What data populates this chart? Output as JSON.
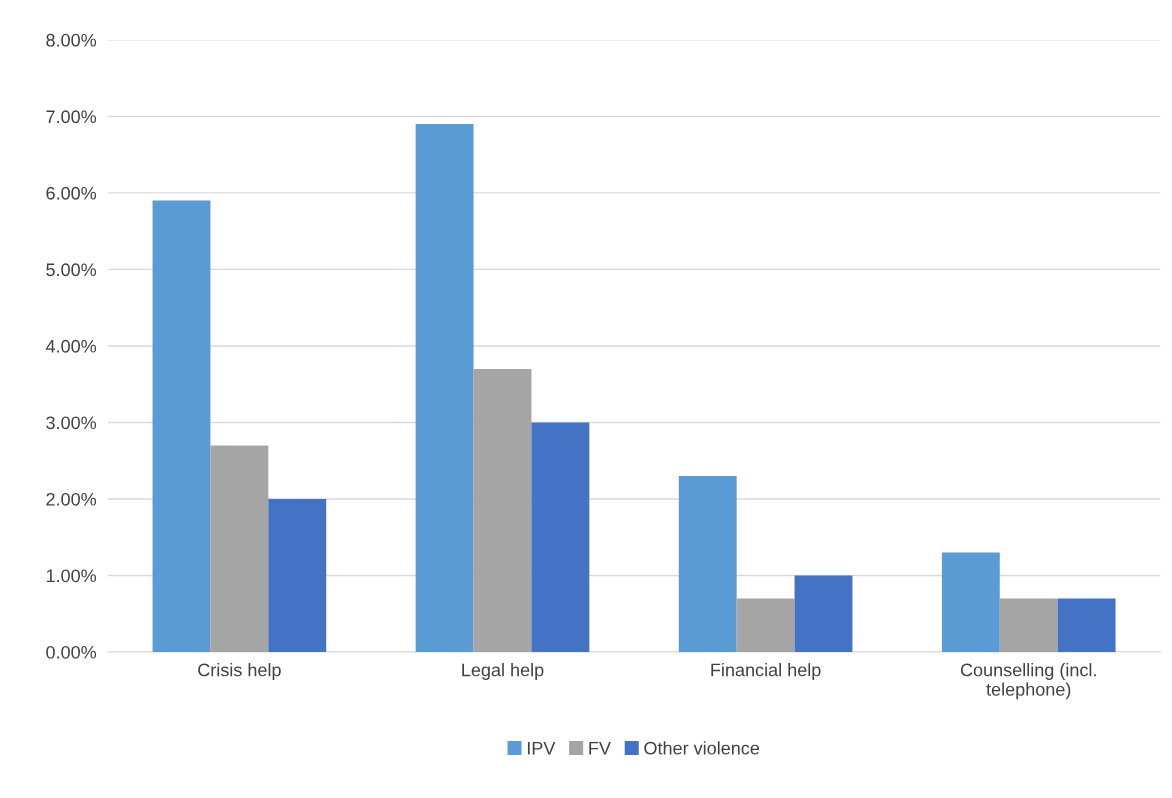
{
  "chart_data": {
    "type": "bar",
    "categories": [
      "Crisis help",
      "Legal help",
      "Financial help",
      "Counselling (incl.\ntelephone)"
    ],
    "series": [
      {
        "name": "IPV",
        "color": "#5b9bd5",
        "values": [
          5.9,
          6.9,
          2.3,
          1.3
        ]
      },
      {
        "name": "FV",
        "color": "#a5a5a5",
        "values": [
          2.7,
          3.7,
          0.7,
          0.7
        ]
      },
      {
        "name": "Other violence",
        "color": "#4472c4",
        "values": [
          2.0,
          3.0,
          1.0,
          0.7
        ]
      }
    ],
    "ylim": [
      0,
      8
    ],
    "yticks": [
      {
        "value": 0,
        "label": "0.00%"
      },
      {
        "value": 1,
        "label": "1.00%"
      },
      {
        "value": 2,
        "label": "2.00%"
      },
      {
        "value": 3,
        "label": "3.00%"
      },
      {
        "value": 4,
        "label": "4.00%"
      },
      {
        "value": 5,
        "label": "5.00%"
      },
      {
        "value": 6,
        "label": "6.00%"
      },
      {
        "value": 7,
        "label": "7.00%"
      },
      {
        "value": 8,
        "label": "8.00%"
      }
    ],
    "grid": "y",
    "legend": "bottom"
  }
}
